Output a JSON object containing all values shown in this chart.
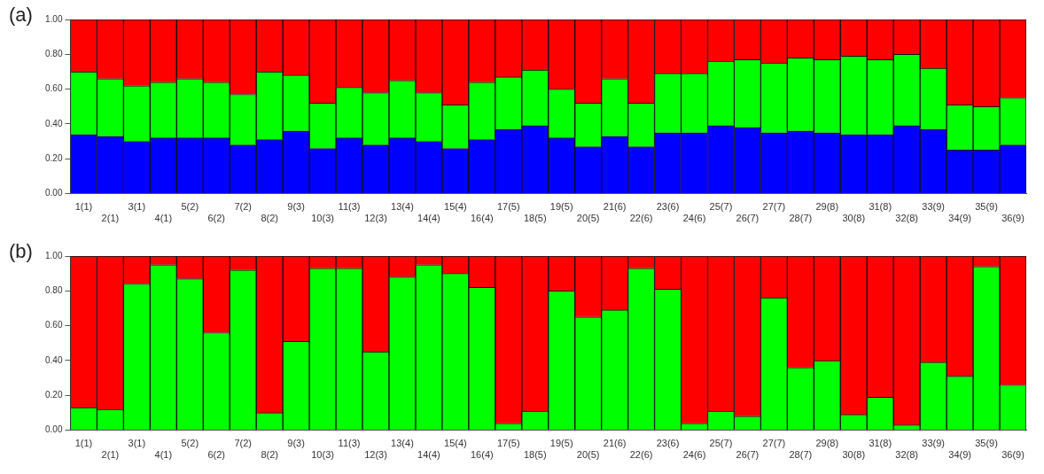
{
  "chart_data": [
    {
      "type": "bar",
      "title": "(a)",
      "stacked": true,
      "grid": false,
      "categories": [
        "1(1)",
        "2(1)",
        "3(1)",
        "4(1)",
        "5(2)",
        "6(2)",
        "7(2)",
        "8(2)",
        "9(3)",
        "10(3)",
        "11(3)",
        "12(3)",
        "13(4)",
        "14(4)",
        "15(4)",
        "16(4)",
        "17(5)",
        "18(5)",
        "19(5)",
        "20(5)",
        "21(6)",
        "22(6)",
        "23(6)",
        "24(6)",
        "25(7)",
        "26(7)",
        "27(7)",
        "28(7)",
        "29(8)",
        "30(8)",
        "31(8)",
        "32(8)",
        "33(9)",
        "34(9)",
        "35(9)",
        "36(9)"
      ],
      "series": [
        {
          "color": "#0000ff",
          "values": [
            0.34,
            0.33,
            0.3,
            0.32,
            0.32,
            0.32,
            0.28,
            0.31,
            0.36,
            0.26,
            0.32,
            0.28,
            0.32,
            0.3,
            0.26,
            0.31,
            0.37,
            0.39,
            0.32,
            0.27,
            0.33,
            0.27,
            0.35,
            0.35,
            0.39,
            0.38,
            0.35,
            0.36,
            0.35,
            0.34,
            0.34,
            0.39,
            0.37,
            0.25,
            0.25,
            0.28
          ]
        },
        {
          "color": "#00ff00",
          "values": [
            0.36,
            0.33,
            0.32,
            0.32,
            0.34,
            0.32,
            0.29,
            0.39,
            0.32,
            0.26,
            0.29,
            0.3,
            0.33,
            0.28,
            0.25,
            0.33,
            0.3,
            0.32,
            0.28,
            0.25,
            0.33,
            0.25,
            0.34,
            0.34,
            0.37,
            0.39,
            0.4,
            0.42,
            0.42,
            0.45,
            0.43,
            0.41,
            0.35,
            0.26,
            0.25,
            0.27
          ]
        },
        {
          "color": "#ff0000",
          "values": [
            0.3,
            0.34,
            0.38,
            0.36,
            0.34,
            0.36,
            0.43,
            0.3,
            0.32,
            0.48,
            0.39,
            0.42,
            0.35,
            0.42,
            0.49,
            0.36,
            0.33,
            0.29,
            0.4,
            0.48,
            0.34,
            0.48,
            0.31,
            0.31,
            0.24,
            0.23,
            0.25,
            0.22,
            0.23,
            0.21,
            0.23,
            0.2,
            0.28,
            0.49,
            0.5,
            0.45
          ]
        }
      ],
      "ylim": [
        0,
        1
      ],
      "yticks": [
        {
          "value": 0,
          "label": "0.00"
        },
        {
          "value": 0.2,
          "label": "0.20"
        },
        {
          "value": 0.4,
          "label": "0.40"
        },
        {
          "value": 0.6,
          "label": "0.60"
        },
        {
          "value": 0.8,
          "label": "0.80"
        },
        {
          "value": 1,
          "label": "1.00"
        }
      ]
    },
    {
      "type": "bar",
      "title": "(b)",
      "stacked": true,
      "grid": false,
      "categories": [
        "1(1)",
        "2(1)",
        "3(1)",
        "4(1)",
        "5(2)",
        "6(2)",
        "7(2)",
        "8(2)",
        "9(3)",
        "10(3)",
        "11(3)",
        "12(3)",
        "13(4)",
        "14(4)",
        "15(4)",
        "16(4)",
        "17(5)",
        "18(5)",
        "19(5)",
        "20(5)",
        "21(6)",
        "22(6)",
        "23(6)",
        "24(6)",
        "25(7)",
        "26(7)",
        "27(7)",
        "28(7)",
        "29(8)",
        "30(8)",
        "31(8)",
        "32(8)",
        "33(9)",
        "34(9)",
        "35(9)",
        "36(9)"
      ],
      "series": [
        {
          "color": "#00ff00",
          "values": [
            0.13,
            0.12,
            0.84,
            0.95,
            0.87,
            0.56,
            0.92,
            0.1,
            0.51,
            0.93,
            0.93,
            0.45,
            0.88,
            0.95,
            0.9,
            0.82,
            0.04,
            0.11,
            0.8,
            0.65,
            0.69,
            0.93,
            0.81,
            0.04,
            0.11,
            0.08,
            0.76,
            0.36,
            0.4,
            0.09,
            0.19,
            0.03,
            0.39,
            0.31,
            0.94,
            0.26
          ]
        },
        {
          "color": "#ff0000",
          "values": [
            0.87,
            0.88,
            0.16,
            0.05,
            0.13,
            0.44,
            0.08,
            0.9,
            0.49,
            0.07,
            0.07,
            0.55,
            0.12,
            0.05,
            0.1,
            0.18,
            0.96,
            0.89,
            0.2,
            0.35,
            0.31,
            0.07,
            0.19,
            0.96,
            0.89,
            0.92,
            0.24,
            0.64,
            0.6,
            0.91,
            0.81,
            0.97,
            0.61,
            0.69,
            0.06,
            0.74
          ]
        }
      ],
      "ylim": [
        0,
        1
      ],
      "yticks": [
        {
          "value": 0,
          "label": "0.00"
        },
        {
          "value": 0.2,
          "label": "0.20"
        },
        {
          "value": 0.4,
          "label": "0.40"
        },
        {
          "value": 0.6,
          "label": "0.60"
        },
        {
          "value": 0.8,
          "label": "0.80"
        },
        {
          "value": 1,
          "label": "1.00"
        }
      ]
    }
  ]
}
